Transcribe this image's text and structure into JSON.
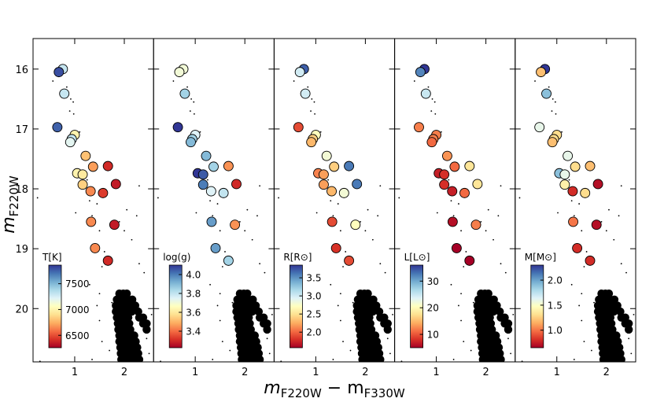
{
  "chart_data": {
    "type": "scatter",
    "xlabel": [
      {
        "text": "m",
        "sub": "F220W"
      },
      {
        "text": " − m",
        "sub": "F330W"
      }
    ],
    "ylabel": {
      "text": "m",
      "sub": "F220W"
    },
    "xlim": [
      0.16,
      2.59
    ],
    "ylim": [
      20.89,
      15.49
    ],
    "xticks": [
      1,
      2
    ],
    "yticks": [
      16,
      17,
      18,
      19,
      20
    ],
    "colormap": [
      "#a50026",
      "#d73027",
      "#f46d43",
      "#fdae61",
      "#fee090",
      "#ffffbf",
      "#e0f3f8",
      "#abd9e9",
      "#74add1",
      "#4575b4",
      "#313695"
    ],
    "stars": {
      "x": [
        0.76,
        0.68,
        0.79,
        0.65,
        1.0,
        0.94,
        0.91,
        1.22,
        1.37,
        1.67,
        1.05,
        1.16,
        1.16,
        1.32,
        1.83,
        1.57,
        1.33,
        1.8,
        1.41,
        1.67
      ],
      "y": [
        16.0,
        16.05,
        16.41,
        16.97,
        17.1,
        17.17,
        17.22,
        17.45,
        17.63,
        17.62,
        17.74,
        17.76,
        17.93,
        18.04,
        17.92,
        18.07,
        18.55,
        18.6,
        18.99,
        19.2
      ]
    },
    "field": {
      "x": [
        0.56,
        0.84,
        0.92,
        0.97,
        0.9,
        0.98,
        1.1,
        1.15,
        1.25,
        1.3,
        1.45,
        1.02,
        1.35,
        1.5,
        2.3,
        2.05,
        2.25,
        1.9,
        2.0,
        2.15,
        1.6,
        1.75,
        1.55,
        2.3,
        2.4,
        1.3,
        1.5,
        1.45,
        1.75,
        1.5,
        1.55,
        1.7,
        2.45,
        2.5,
        1.35,
        2.55,
        0.25,
        0.3,
        1.9,
        1.98,
        2.05,
        1.85,
        1.92,
        2.0,
        2.08,
        2.16,
        1.83,
        1.9,
        1.97,
        2.05,
        2.13,
        2.22,
        1.83,
        1.9,
        1.97,
        2.05,
        2.15,
        2.28,
        1.85,
        1.92,
        2.0,
        2.08,
        2.3,
        2.38,
        1.87,
        1.94,
        2.02,
        2.1,
        2.38,
        2.45,
        1.88,
        1.95,
        2.03,
        2.12,
        2.45,
        1.9,
        1.97,
        2.05,
        2.14,
        2.2,
        1.9,
        1.98,
        2.06,
        2.15,
        2.23,
        1.92,
        2.0,
        2.08,
        2.17,
        2.26,
        1.93,
        2.01,
        2.1,
        2.19,
        2.28,
        1.94,
        2.03,
        2.12,
        2.21,
        2.3
      ],
      "y": [
        16.2,
        16.3,
        16.5,
        16.55,
        16.7,
        16.75,
        17.05,
        17.5,
        17.85,
        18.2,
        18.25,
        18.4,
        18.45,
        18.7,
        17.95,
        18.35,
        18.45,
        18.55,
        18.7,
        18.85,
        19.05,
        19.2,
        19.3,
        19.25,
        19.4,
        19.6,
        19.75,
        19.95,
        19.9,
        20.2,
        20.55,
        20.7,
        20.5,
        20.75,
        20.85,
        20.1,
        18.15,
        20.88,
        19.75,
        19.75,
        19.75,
        19.85,
        19.85,
        19.85,
        19.85,
        19.85,
        19.95,
        19.95,
        19.95,
        19.95,
        19.95,
        19.95,
        20.05,
        20.05,
        20.05,
        20.05,
        20.05,
        20.05,
        20.15,
        20.15,
        20.15,
        20.15,
        20.15,
        20.15,
        20.25,
        20.25,
        20.25,
        20.25,
        20.25,
        20.25,
        20.35,
        20.35,
        20.35,
        20.35,
        20.35,
        20.45,
        20.45,
        20.45,
        20.45,
        20.45,
        20.55,
        20.55,
        20.55,
        20.55,
        20.55,
        20.65,
        20.65,
        20.65,
        20.65,
        20.65,
        20.75,
        20.75,
        20.75,
        20.75,
        20.75,
        20.85,
        20.85,
        20.85,
        20.85,
        20.85
      ]
    },
    "panels": [
      {
        "label": "T[K]",
        "clim": [
          6260,
          7860
        ],
        "cticks": [
          6500,
          7000,
          7500
        ],
        "values": [
          7300,
          7800,
          7300,
          7750,
          7000,
          7300,
          7200,
          6800,
          6700,
          6400,
          7000,
          6950,
          6850,
          6650,
          6350,
          6450,
          6650,
          6350,
          6650,
          6400
        ]
      },
      {
        "label": "log(g)",
        "clim": [
          3.225,
          4.1
        ],
        "cticks": [
          3.4,
          3.6,
          3.8,
          {
            "value": 4,
            "label": "4.0"
          }
        ],
        "values": [
          3.7,
          3.7,
          3.85,
          4.1,
          3.75,
          3.85,
          3.9,
          3.9,
          3.85,
          3.45,
          4.1,
          4.05,
          4.0,
          3.75,
          3.3,
          3.8,
          3.95,
          3.45,
          3.95,
          3.85
        ]
      },
      {
        "label": "R[R⊙]",
        "clim": [
          1.57,
          3.85
        ],
        "cticks": [
          {
            "value": 2,
            "label": "2.0"
          },
          2.5,
          {
            "value": 3,
            "label": "3.0"
          },
          3.5
        ],
        "values": [
          3.7,
          3.0,
          3.0,
          1.9,
          2.7,
          2.4,
          2.3,
          2.8,
          2.4,
          3.6,
          2.1,
          2.2,
          2.2,
          2.3,
          3.6,
          2.8,
          1.9,
          2.7,
          1.8,
          1.9
        ]
      },
      {
        "label": "L[L⊙]",
        "clim": [
          5,
          36
        ],
        "cticks": [
          10,
          20,
          30
        ],
        "values": [
          36,
          32,
          25,
          12,
          12,
          12,
          11,
          13,
          11,
          18,
          7,
          8,
          8,
          7,
          18,
          11,
          6,
          12,
          5,
          5
        ]
      },
      {
        "label": "M[M⊙]",
        "clim": [
          0.65,
          2.3
        ],
        "cticks": [
          {
            "value": 1,
            "label": "1.0"
          },
          1.5,
          {
            "value": 2,
            "label": "2.0"
          }
        ],
        "values": [
          2.3,
          1.2,
          1.9,
          1.6,
          1.3,
          1.3,
          1.2,
          1.6,
          1.3,
          1.2,
          1.9,
          1.6,
          1.4,
          0.8,
          0.7,
          1.3,
          1.0,
          0.7,
          0.8,
          0.8
        ]
      }
    ]
  }
}
